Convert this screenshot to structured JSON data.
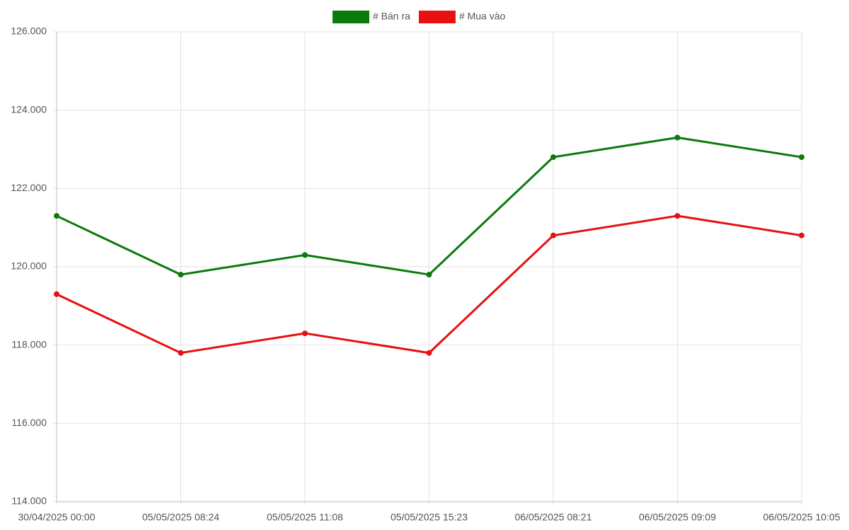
{
  "chart_data": {
    "type": "line",
    "categories": [
      "30/04/2025 00:00",
      "05/05/2025 08:24",
      "05/05/2025 11:08",
      "05/05/2025 15:23",
      "06/05/2025 08:21",
      "06/05/2025 09:09",
      "06/05/2025 10:05"
    ],
    "series": [
      {
        "name": "# Bán ra",
        "color": "#0a7a0a",
        "values": [
          121300,
          119800,
          120300,
          119800,
          122800,
          123300,
          122800
        ]
      },
      {
        "name": "# Mua vào",
        "color": "#e81010",
        "values": [
          119300,
          117800,
          118300,
          117800,
          120800,
          121300,
          120800
        ]
      }
    ],
    "ylim": [
      114000,
      126000
    ],
    "yticks": [
      {
        "value": 114000,
        "label": "114.000"
      },
      {
        "value": 116000,
        "label": "116.000"
      },
      {
        "value": 118000,
        "label": "118.000"
      },
      {
        "value": 120000,
        "label": "120.000"
      },
      {
        "value": 122000,
        "label": "122.000"
      },
      {
        "value": 124000,
        "label": "124.000"
      },
      {
        "value": 126000,
        "label": "126.000"
      }
    ],
    "grid": true,
    "legend": "top"
  }
}
